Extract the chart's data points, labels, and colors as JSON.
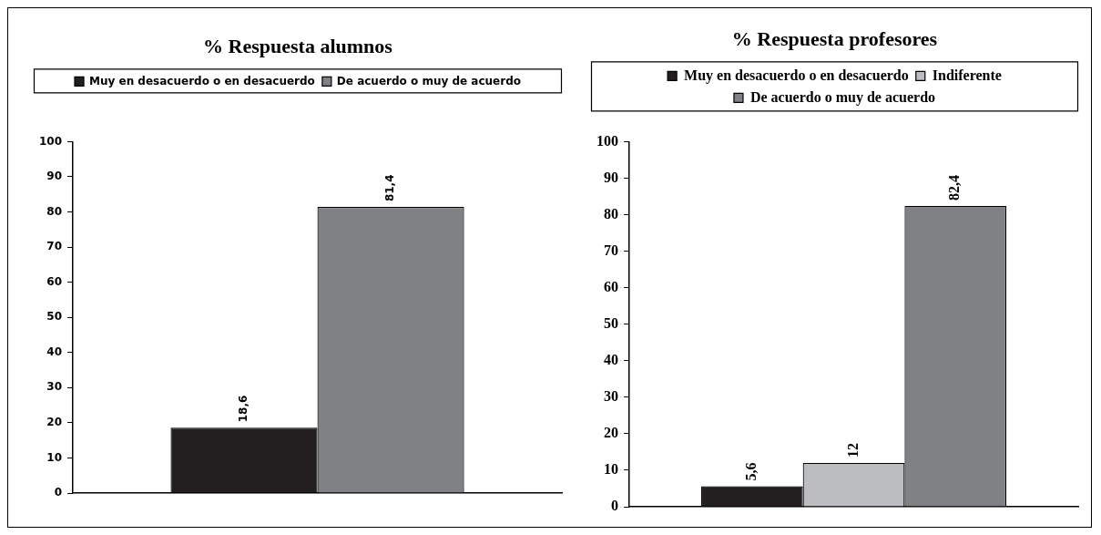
{
  "chart_data": [
    {
      "type": "bar",
      "title": "% Respuesta alumnos",
      "categories": [
        null
      ],
      "series": [
        {
          "name": "Muy en desacuerdo o en desacuerdo",
          "color": "#231f20",
          "values": [
            18.6
          ],
          "value_labels": [
            "18,6"
          ]
        },
        {
          "name": "De acuerdo o muy de acuerdo",
          "color": "#808184",
          "values": [
            81.4
          ],
          "value_labels": [
            "81,4"
          ]
        }
      ],
      "ylim": [
        0,
        100
      ],
      "yticks": [
        0,
        10,
        20,
        30,
        40,
        50,
        60,
        70,
        80,
        90,
        100
      ],
      "grid": false,
      "legend": "top"
    },
    {
      "type": "bar",
      "title": "% Respuesta profesores",
      "categories": [
        null
      ],
      "series": [
        {
          "name": "Muy en desacuerdo o en desacuerdo",
          "color": "#231f20",
          "values": [
            5.6
          ],
          "value_labels": [
            "5,6"
          ]
        },
        {
          "name": "Indiferente",
          "color": "#bcbdc0",
          "values": [
            12
          ],
          "value_labels": [
            "12"
          ]
        },
        {
          "name": "De acuerdo o muy de acuerdo",
          "color": "#808184",
          "values": [
            82.4
          ],
          "value_labels": [
            "82,4"
          ]
        }
      ],
      "ylim": [
        0,
        100
      ],
      "yticks": [
        0,
        10,
        20,
        30,
        40,
        50,
        60,
        70,
        80,
        90,
        100
      ],
      "grid": false,
      "legend": "top"
    }
  ]
}
